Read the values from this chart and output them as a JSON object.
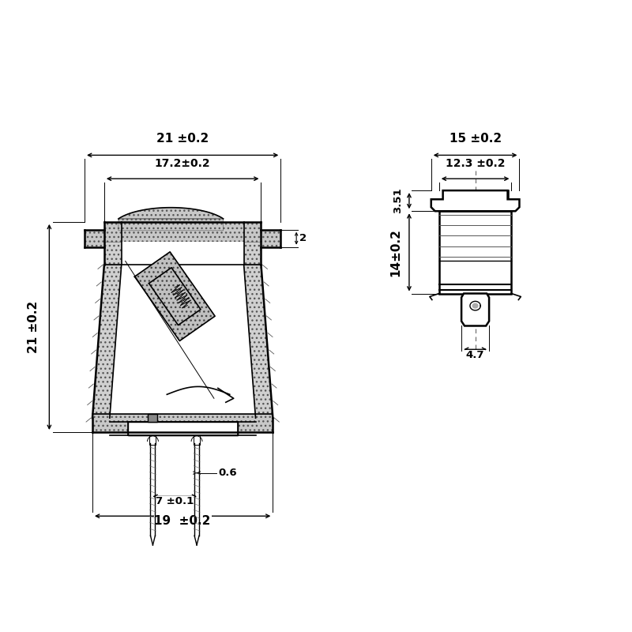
{
  "bg_color": "#ffffff",
  "line_color": "#000000",
  "dim_labels": {
    "top_21": "21 ±0.2",
    "top_172": "17.2±0.2",
    "side_21": "21 ±0.2",
    "bot_19": "19  ±0.2",
    "pin_7": "7 ±0.1",
    "pin_06": "0.6",
    "tab_2": "2",
    "r_top_15": "15 ±0.2",
    "r_top_123": "12.3 ±0.2",
    "r_351": "3.51",
    "r_14": "14±0.2",
    "r_47": "4.7"
  }
}
